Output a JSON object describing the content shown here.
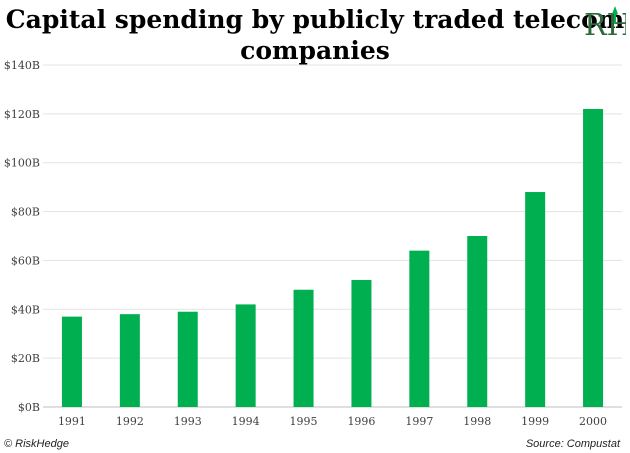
{
  "chart_data": {
    "type": "bar",
    "title": "Capital spending by publicly traded telecom companies",
    "categories": [
      "1991",
      "1992",
      "1993",
      "1994",
      "1995",
      "1996",
      "1997",
      "1998",
      "1999",
      "2000"
    ],
    "values": [
      37,
      38,
      39,
      42,
      48,
      52,
      64,
      70,
      88,
      122
    ],
    "y_ticks": [
      "$0B",
      "$20B",
      "$40B",
      "$60B",
      "$80B",
      "$100B",
      "$120B",
      "$140B"
    ],
    "ylim": [
      0,
      140
    ],
    "grid": true,
    "bar_color": "#00b050",
    "xlabel": "",
    "ylabel": ""
  },
  "title_line1": "Capital spending by publicly traded telecom",
  "title_line2": "companies",
  "logo": {
    "text": "RH",
    "icon": "rh-monogram-logo",
    "color": "#2f6b3a",
    "accent": "#00b050"
  },
  "footer": {
    "copyright": "© RiskHedge",
    "source": "Source: Compustat"
  }
}
